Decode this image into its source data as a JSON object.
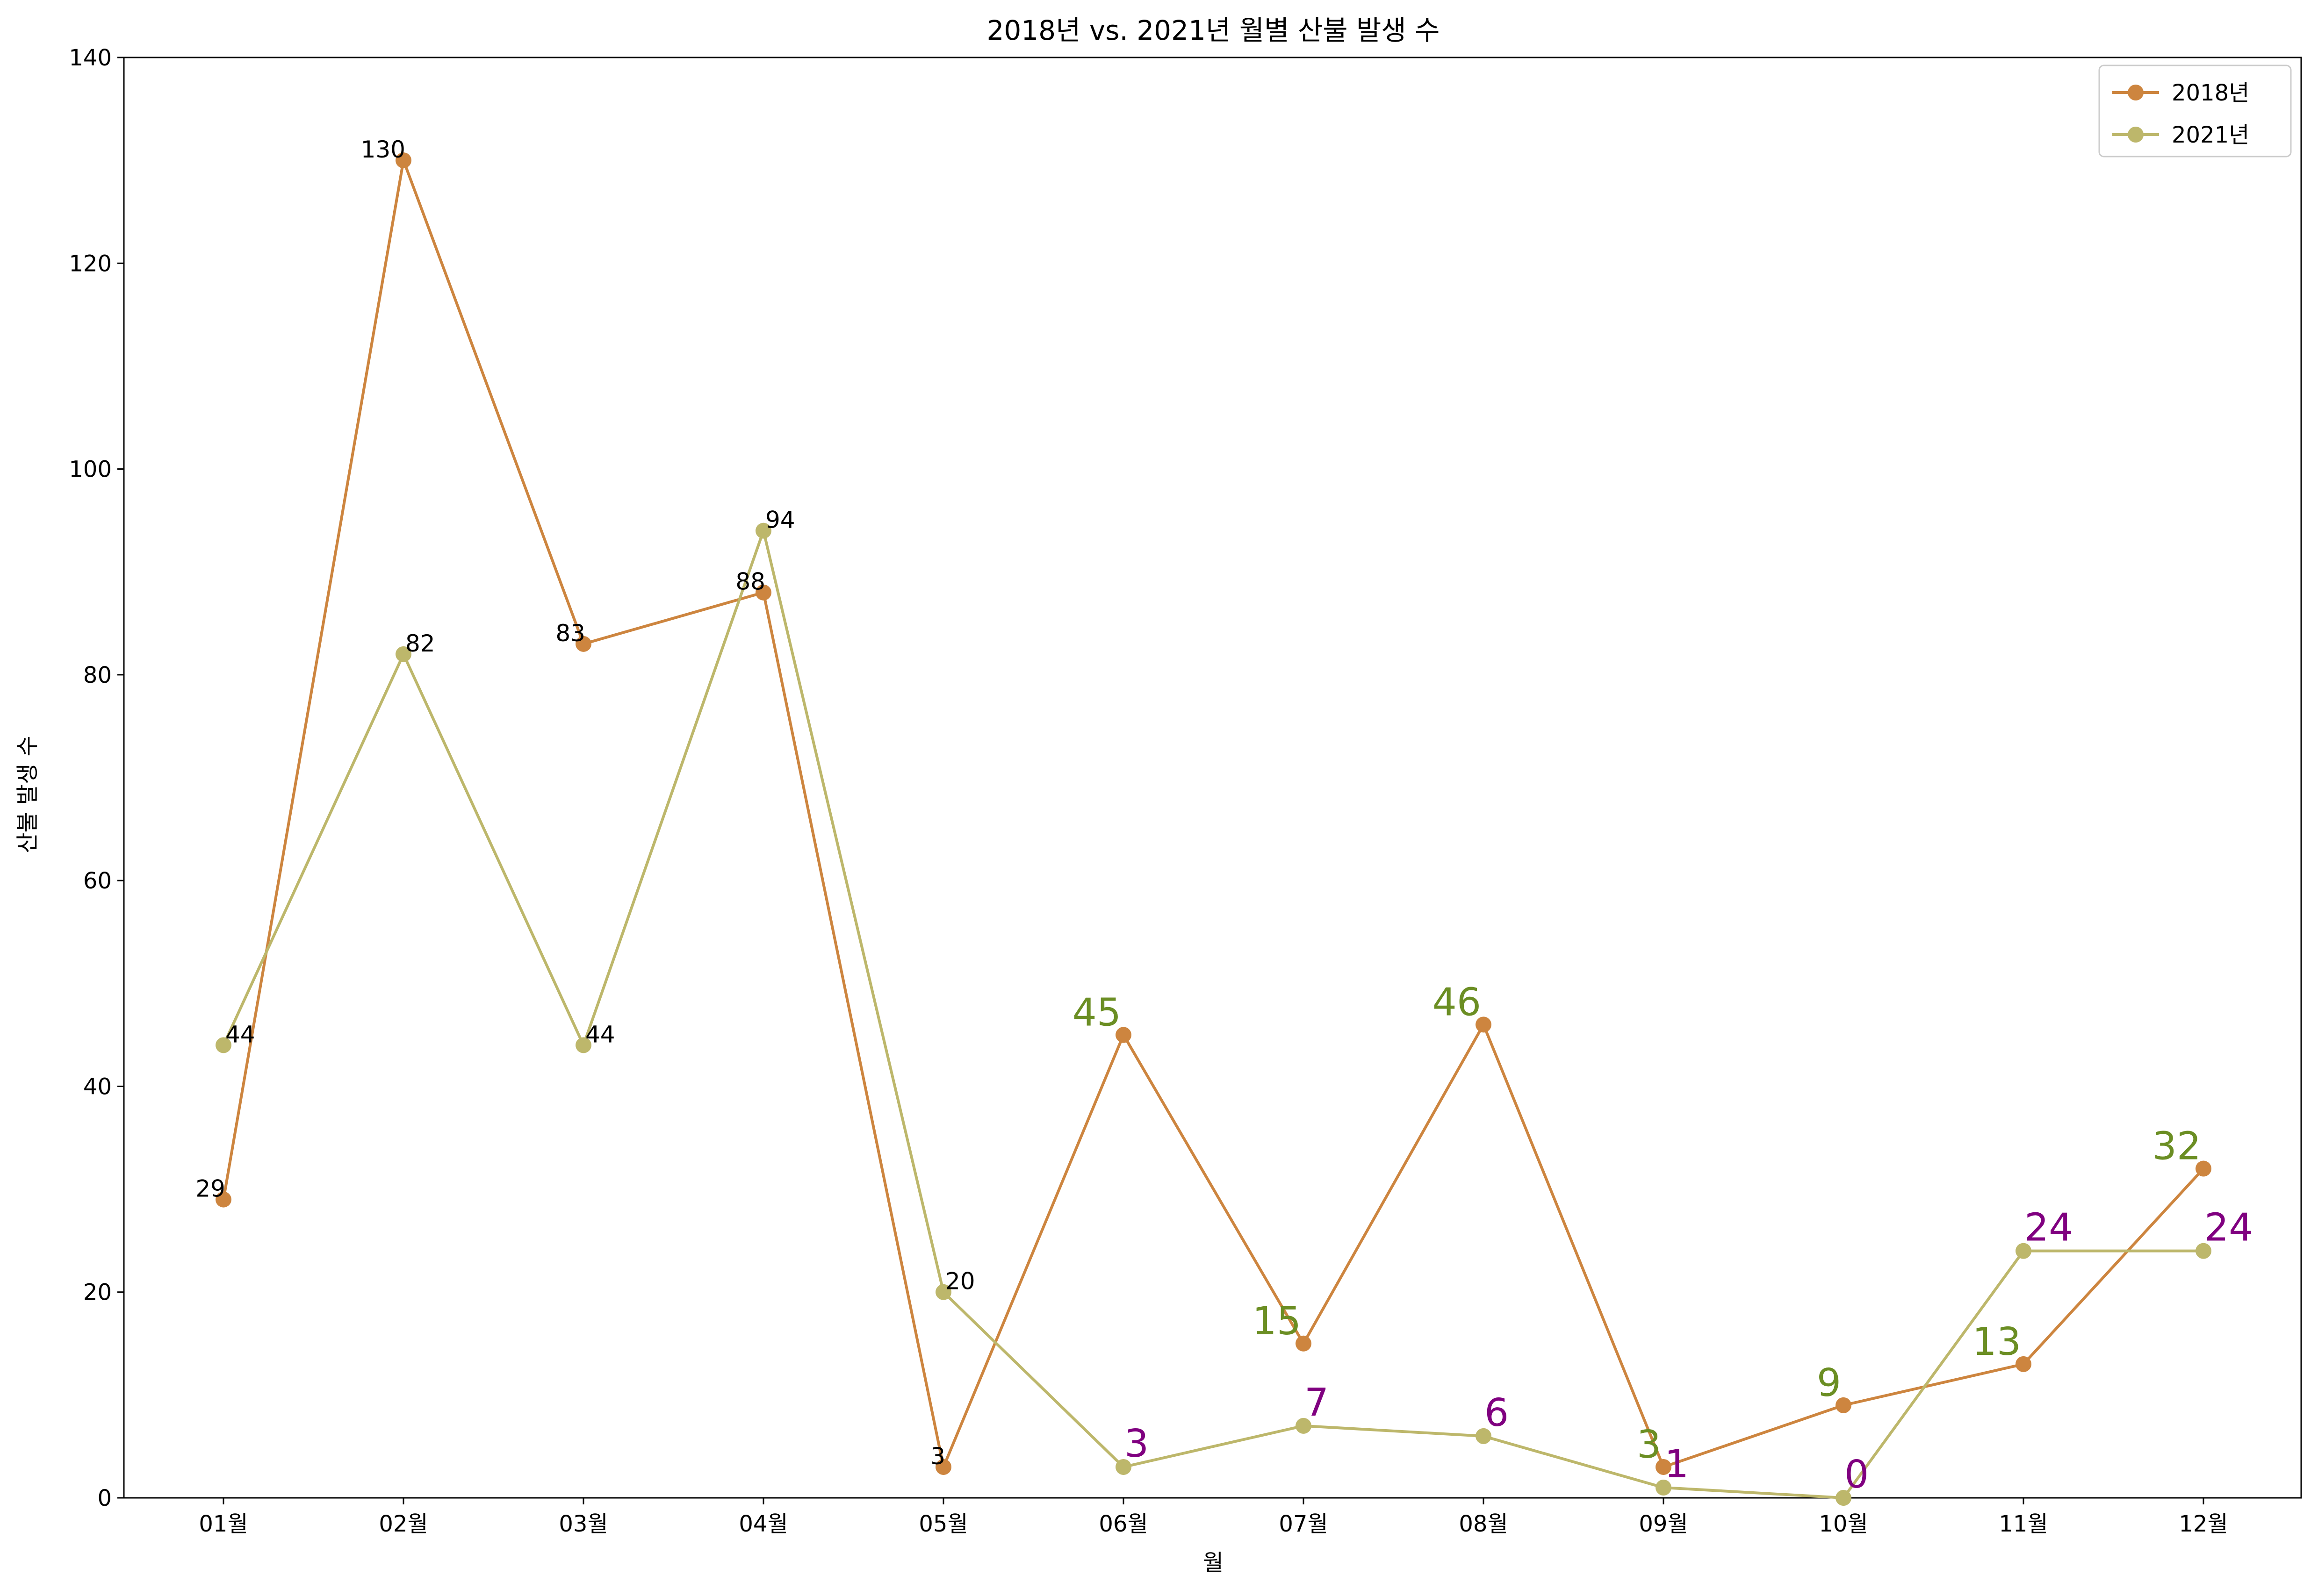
{
  "chart_data": {
    "type": "line",
    "title": "2018년 vs. 2021년 월별 산불 발생 수",
    "xlabel": "월",
    "ylabel": "산불 발생 수",
    "categories": [
      "01월",
      "02월",
      "03월",
      "04월",
      "05월",
      "06월",
      "07월",
      "08월",
      "09월",
      "10월",
      "11월",
      "12월"
    ],
    "ylim": [
      0,
      140
    ],
    "yticks": [
      0,
      20,
      40,
      60,
      80,
      100,
      120,
      140
    ],
    "grid": false,
    "legend_position": "top-right",
    "series": [
      {
        "name": "2018년",
        "color": "#cd853f",
        "values": [
          29,
          130,
          83,
          88,
          3,
          45,
          15,
          46,
          3,
          9,
          13,
          32
        ],
        "label_colors": [
          "#000000",
          "#000000",
          "#000000",
          "#000000",
          "#000000",
          "#6b8e23",
          "#6b8e23",
          "#6b8e23",
          "#6b8e23",
          "#6b8e23",
          "#6b8e23",
          "#6b8e23"
        ],
        "label_large": [
          false,
          false,
          false,
          false,
          false,
          true,
          true,
          true,
          true,
          true,
          true,
          true
        ]
      },
      {
        "name": "2021년",
        "color": "#bdb76b",
        "values": [
          44,
          82,
          44,
          94,
          20,
          3,
          7,
          6,
          1,
          0,
          24,
          24
        ],
        "label_colors": [
          "#000000",
          "#000000",
          "#000000",
          "#000000",
          "#000000",
          "#800080",
          "#800080",
          "#800080",
          "#800080",
          "#800080",
          "#800080",
          "#800080"
        ],
        "label_large": [
          false,
          false,
          false,
          false,
          false,
          true,
          true,
          true,
          true,
          true,
          true,
          true
        ]
      }
    ]
  }
}
